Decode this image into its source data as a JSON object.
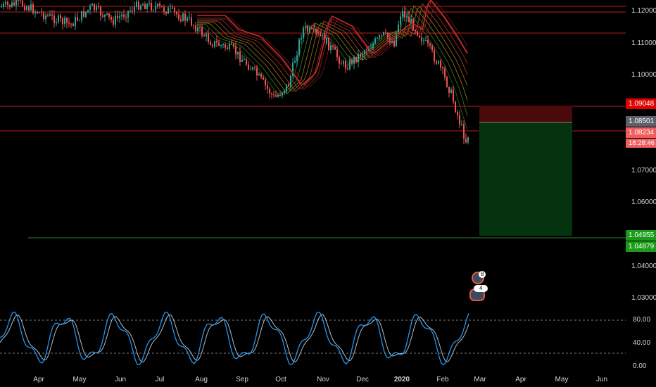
{
  "price_axis": {
    "ticks": [
      "1.12000",
      "1.11000",
      "1.10000",
      "1.07000",
      "1.06000",
      "1.04000",
      "1.03000"
    ]
  },
  "price_labels": {
    "stop_loss": "1.09048",
    "entry": "1.08501",
    "current_price": "1.08234",
    "countdown": "18:28:46",
    "take_profit": "1.04955",
    "support": "1.04879"
  },
  "time_axis": {
    "ticks": [
      "Apr",
      "May",
      "Jun",
      "Jul",
      "Aug",
      "Sep",
      "Oct",
      "Nov",
      "Dec",
      "2020",
      "Feb",
      "Mar",
      "Apr",
      "May",
      "Jun"
    ]
  },
  "oscillator": {
    "ticks": [
      "80.00",
      "40.00",
      "0.00"
    ],
    "upper_band": 80,
    "lower_band": 20
  },
  "events": {
    "badge_top_count": "8",
    "badge_bottom_count": "4"
  },
  "colors": {
    "background": "#000000",
    "candle_up": "#26a69a",
    "candle_down": "#ef5350",
    "resistance_line": "#b71c1c",
    "support_line": "#2e7d32",
    "stop_zone": "#4a0a0a",
    "profit_zone": "#06330f",
    "ma_main": "#c62828",
    "stoch_k": "#2196f3",
    "stoch_d": "#bbbbbb"
  }
}
